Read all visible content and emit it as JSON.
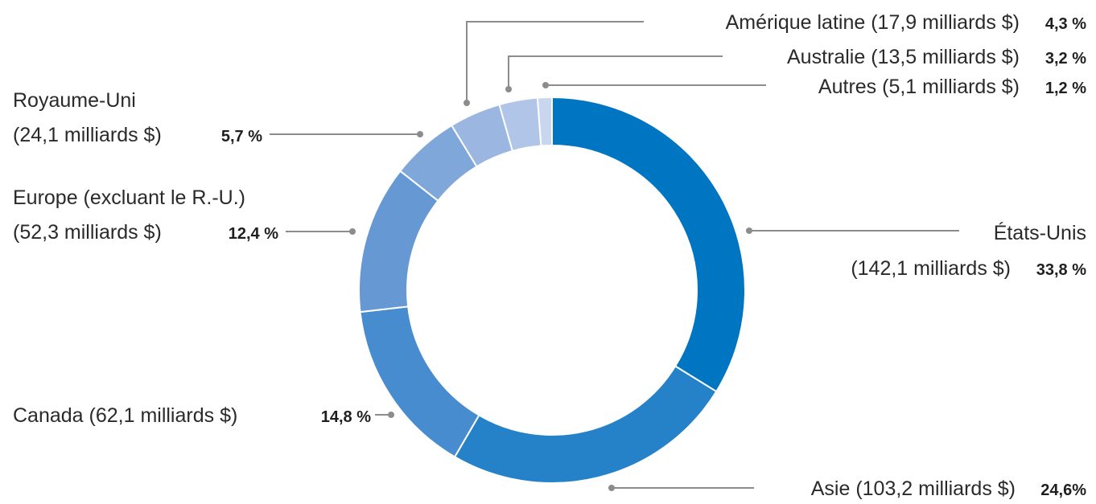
{
  "chart_data": {
    "type": "pie",
    "donut": true,
    "title": "",
    "slices": [
      {
        "name": "États-Unis",
        "amount": "142,1 milliards $",
        "value": 33.8,
        "percent_label": "33,8 %",
        "color": "#0075c2"
      },
      {
        "name": "Asie",
        "amount": "103,2 milliards $",
        "value": 24.6,
        "percent_label": "24,6%",
        "color": "#2582c8"
      },
      {
        "name": "Canada",
        "amount": "62,1 milliards $",
        "value": 14.8,
        "percent_label": "14,8 %",
        "color": "#478cce"
      },
      {
        "name": "Europe (excluant le R.-U.)",
        "amount": "52,3 milliards $",
        "value": 12.4,
        "percent_label": "12,4 %",
        "color": "#6699d4"
      },
      {
        "name": "Royaume-Uni",
        "amount": "24,1 milliards $",
        "value": 5.7,
        "percent_label": "5,7 %",
        "color": "#80a7d9"
      },
      {
        "name": "Amérique latine",
        "amount": "17,9 milliards $",
        "value": 4.3,
        "percent_label": "4,3 %",
        "color": "#9ab6e1"
      },
      {
        "name": "Australie",
        "amount": "13,5 milliards $",
        "value": 3.2,
        "percent_label": "3,2 %",
        "color": "#b0c5e8"
      },
      {
        "name": "Autres",
        "amount": "5,1 milliards $",
        "value": 1.2,
        "percent_label": "1,2 %",
        "color": "#c8d7ef"
      }
    ]
  },
  "labels": {
    "us_name": "États-Unis",
    "us_amount": "(142,1 milliards $)",
    "us_pct": "33,8 %",
    "asia_text": "Asie (103,2 milliards $)",
    "asia_pct": "24,6%",
    "canada_text": "Canada (62,1 milliards $)",
    "canada_pct": "14,8 %",
    "europe_name": "Europe (excluant le R.-U.)",
    "europe_amount": "(52,3 milliards $)",
    "europe_pct": "12,4 %",
    "uk_name": "Royaume-Uni",
    "uk_amount": "(24,1 milliards $)",
    "uk_pct": "5,7 %",
    "latam_text": "Amérique latine (17,9 milliards $)",
    "latam_pct": "4,3 %",
    "australia_text": "Australie (13,5 milliards $)",
    "australia_pct": "3,2 %",
    "other_text": "Autres (5,1 milliards $)",
    "other_pct": "1,2 %"
  }
}
